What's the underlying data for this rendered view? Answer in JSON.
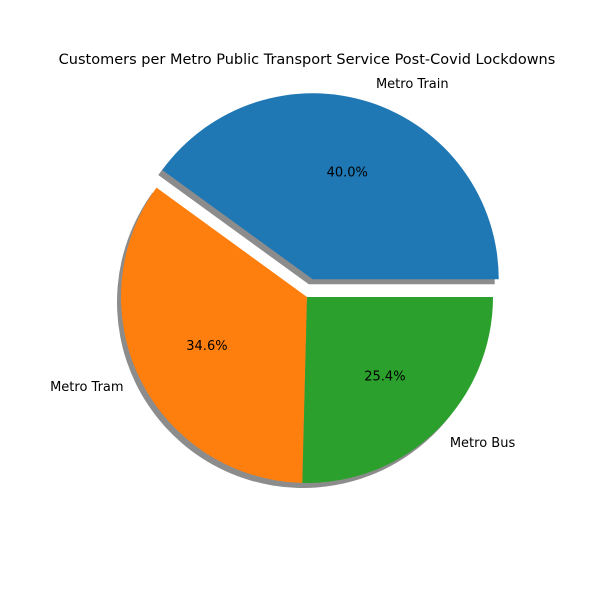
{
  "chart_data": {
    "type": "pie",
    "title": "Customers per Metro Public Transport Service Post-Covid Lockdowns",
    "categories": [
      "Metro Train",
      "Metro Tram",
      "Metro Bus"
    ],
    "values": [
      40.0,
      34.6,
      25.4
    ],
    "percent_labels": [
      "40.0%",
      "34.6%",
      "25.4%"
    ],
    "colors": [
      "#1f77b4",
      "#ff7f0e",
      "#2ca02c"
    ],
    "explode": [
      0.1,
      0,
      0
    ],
    "shadow": true,
    "start_angle_deg": 0,
    "direction": "counterclockwise",
    "xlabel": "",
    "ylabel": ""
  }
}
